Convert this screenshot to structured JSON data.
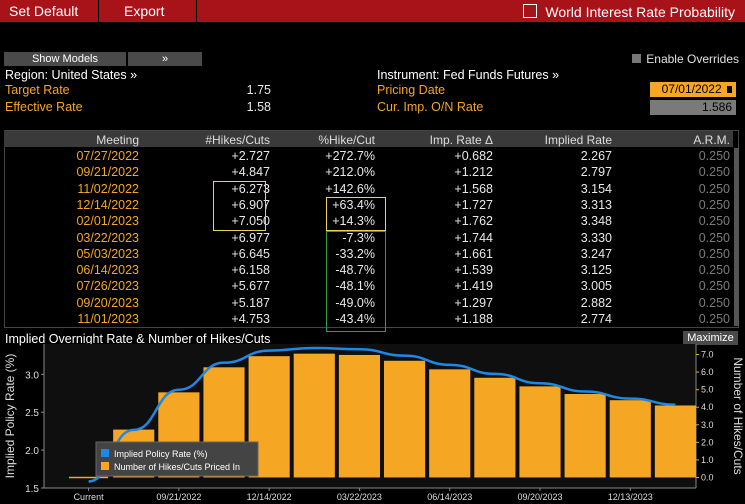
{
  "menubar": {
    "set_default": "Set Default",
    "export": "Export",
    "title": "World Interest Rate Probability"
  },
  "toolbar": {
    "show_models": "Show Models",
    "chevron": "»",
    "enable_overrides": "Enable Overrides"
  },
  "info": {
    "region": "Region: United States »",
    "target_rate_label": "Target Rate",
    "target_rate_value": "1.75",
    "effective_rate_label": "Effective Rate",
    "effective_rate_value": "1.58",
    "instrument": "Instrument: Fed Funds Futures »",
    "pricing_date_label": "Pricing Date",
    "pricing_date_value": "07/01/2022",
    "cur_imp_label": "Cur. Imp. O/N Rate",
    "cur_imp_value": "1.586"
  },
  "table": {
    "headers": [
      "Meeting",
      "#Hikes/Cuts",
      "%Hike/Cut",
      "Imp. Rate Δ",
      "Implied Rate",
      "A.R.M."
    ],
    "rows": [
      [
        "07/27/2022",
        "+2.727",
        "+272.7%",
        "+0.682",
        "2.267",
        "0.250"
      ],
      [
        "09/21/2022",
        "+4.847",
        "+212.0%",
        "+1.212",
        "2.797",
        "0.250"
      ],
      [
        "11/02/2022",
        "+6.273",
        "+142.6%",
        "+1.568",
        "3.154",
        "0.250"
      ],
      [
        "12/14/2022",
        "+6.907",
        "+63.4%",
        "+1.727",
        "3.313",
        "0.250"
      ],
      [
        "02/01/2023",
        "+7.050",
        "+14.3%",
        "+1.762",
        "3.348",
        "0.250"
      ],
      [
        "03/22/2023",
        "+6.977",
        "-7.3%",
        "+1.744",
        "3.330",
        "0.250"
      ],
      [
        "05/03/2023",
        "+6.645",
        "-33.2%",
        "+1.661",
        "3.247",
        "0.250"
      ],
      [
        "06/14/2023",
        "+6.158",
        "-48.7%",
        "+1.539",
        "3.125",
        "0.250"
      ],
      [
        "07/26/2023",
        "+5.677",
        "-48.1%",
        "+1.419",
        "3.005",
        "0.250"
      ],
      [
        "09/20/2023",
        "+5.187",
        "-49.0%",
        "+1.297",
        "2.882",
        "0.250"
      ],
      [
        "11/01/2023",
        "+4.753",
        "-43.4%",
        "+1.188",
        "2.774",
        "0.250"
      ]
    ]
  },
  "chart": {
    "title": "Implied Overnight Rate & Number of Hikes/Cuts",
    "maximize": "Maximize"
  },
  "colors": {
    "accent": "#f5a623",
    "menubar": "#a8131a",
    "line": "#1e88e5"
  },
  "chart_data": {
    "type": "bar",
    "categories": [
      "Current",
      "07/27/2022",
      "09/21/2022",
      "11/02/2022",
      "12/14/2022",
      "02/01/2023",
      "03/22/2023",
      "05/03/2023",
      "06/14/2023",
      "07/26/2023",
      "09/20/2023",
      "11/01/2023",
      "12/13/2023",
      "01/31/2024"
    ],
    "xtick_labels": [
      "Current",
      "09/21/2022",
      "12/14/2022",
      "03/22/2023",
      "06/14/2023",
      "09/20/2023",
      "12/13/2023"
    ],
    "xtick_indices": [
      0,
      2,
      4,
      6,
      8,
      10,
      12
    ],
    "series": [
      {
        "name": "Implied Policy Rate (%)",
        "type": "line",
        "axis": "left",
        "values": [
          1.586,
          2.267,
          2.797,
          3.154,
          3.313,
          3.348,
          3.33,
          3.247,
          3.125,
          3.005,
          2.882,
          2.774,
          2.68,
          2.6
        ]
      },
      {
        "name": "Number of Hikes/Cuts Priced In",
        "type": "bar",
        "axis": "right",
        "values": [
          0.0,
          2.727,
          4.847,
          6.273,
          6.907,
          7.05,
          6.977,
          6.645,
          6.158,
          5.677,
          5.187,
          4.753,
          4.4,
          4.1
        ]
      }
    ],
    "ylabel": "Implied Policy Rate (%)",
    "y2label": "Number of Hikes/Cuts",
    "ylim": [
      1.5,
      3.4
    ],
    "yticks": [
      "1.5",
      "2.0",
      "2.5",
      "3.0"
    ],
    "y2lim": [
      -0.6,
      7.6
    ],
    "y2ticks": [
      "0.0",
      "1.0",
      "2.0",
      "3.0",
      "4.0",
      "5.0",
      "6.0",
      "7.0"
    ],
    "legend": [
      "Implied Policy Rate (%)",
      "Number of Hikes/Cuts Priced In"
    ]
  }
}
